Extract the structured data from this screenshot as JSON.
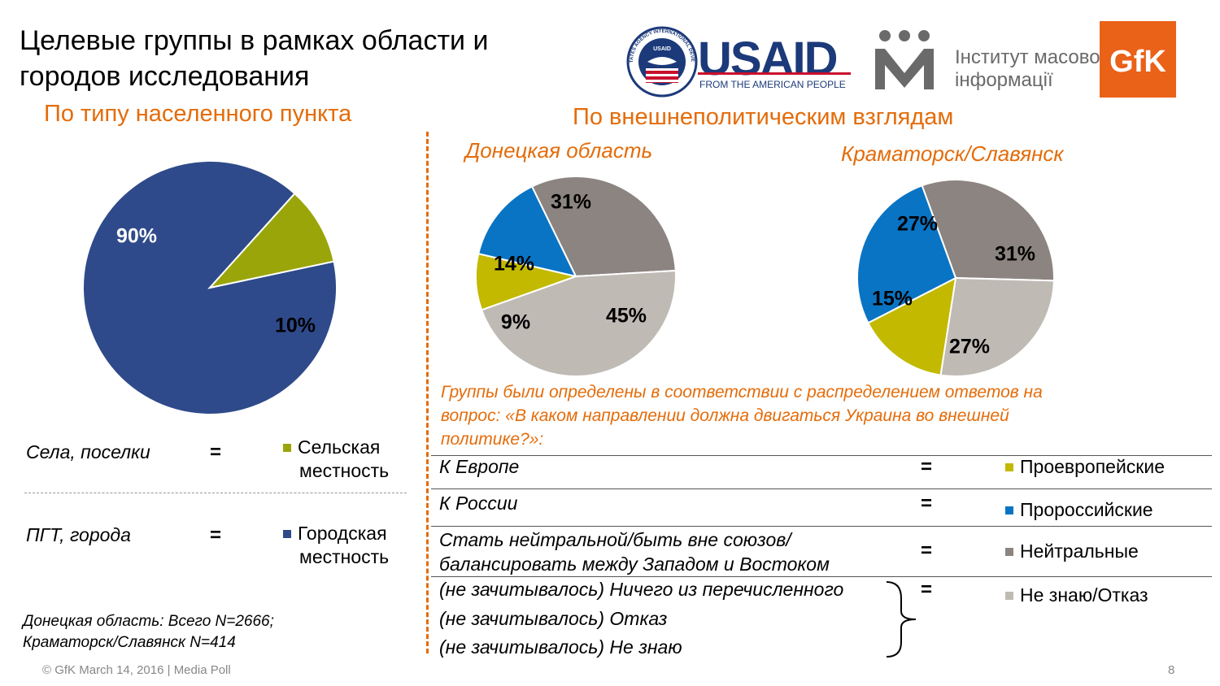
{
  "title_line1": "Целевые группы в рамках области и",
  "title_line2": "городов исследования",
  "left_subtitle": "По типу населенного пункта",
  "right_subtitle": "По внешнеполитическим взглядам",
  "logos": {
    "usaid_seal_text": "UNITED STATES AGENCY INTERNATIONAL DEVELOPMENT",
    "usaid_seal_inner": "USAID",
    "usaid_text": "USAID",
    "usaid_tagline": "FROM THE AMERICAN PEOPLE",
    "imi_line1": "Інститут масової",
    "imi_line2": "інформації",
    "gfk_text": "GfK"
  },
  "colors": {
    "orange": "#e46c0a",
    "urban": "#2e4a8a",
    "rural": "#9aa50a",
    "pro_eu": "#c2b900",
    "pro_ru": "#0a74c4",
    "neutral": "#8c8480",
    "dk": "#c0bab5"
  },
  "chart_data": [
    {
      "type": "pie",
      "title": "",
      "slices": [
        {
          "label": "Городская местность",
          "value": 90,
          "display": "90%",
          "color": "#2e4a8a"
        },
        {
          "label": "Сельская местность",
          "value": 10,
          "display": "10%",
          "color": "#9aa50a"
        }
      ]
    },
    {
      "type": "pie",
      "title": "Донецкая область",
      "slices": [
        {
          "label": "Нейтральные",
          "value": 31,
          "display": "31%",
          "color": "#8c8480"
        },
        {
          "label": "Не знаю/Отказ",
          "value": 45,
          "display": "45%",
          "color": "#c0bab5"
        },
        {
          "label": "Проевропейские",
          "value": 9,
          "display": "9%",
          "color": "#c2b900"
        },
        {
          "label": "Пророссийские",
          "value": 14,
          "display": "14%",
          "color": "#0a74c4"
        }
      ]
    },
    {
      "type": "pie",
      "title": "Краматорск/Славянск",
      "slices": [
        {
          "label": "Нейтральные",
          "value": 31,
          "display": "31%",
          "color": "#8c8480"
        },
        {
          "label": "Не знаю/Отказ",
          "value": 27,
          "display": "27%",
          "color": "#c0bab5"
        },
        {
          "label": "Проевропейские",
          "value": 15,
          "display": "15%",
          "color": "#c2b900"
        },
        {
          "label": "Пророссийские",
          "value": 27,
          "display": "27%",
          "color": "#0a74c4"
        }
      ]
    }
  ],
  "left_legend": [
    {
      "source": "Села, поселки",
      "eq": "=",
      "key_line1": "Сельская",
      "key_line2": "местность",
      "color": "#9aa50a"
    },
    {
      "source": "ПГТ, города",
      "eq": "=",
      "key_line1": "Городская",
      "key_line2": "местность",
      "color": "#2e4a8a"
    }
  ],
  "sample_note_line1": "Донецкая область: Всего N=2666;",
  "sample_note_line2": "Краматорск/Славянск N=414",
  "groups_note_line1": "Группы были определены в соответствии  с  распределением ответов  на",
  "groups_note_line2": "вопрос: «В каком направлении должна двигаться Украина во внешней",
  "groups_note_line3": "политике?»:",
  "right_legend": [
    {
      "answer": "К Европе",
      "eq": "=",
      "key": "Проевропейские",
      "color": "#c2b900"
    },
    {
      "answer": "К России",
      "eq": "=",
      "key": "Пророссийские",
      "color": "#0a74c4"
    },
    {
      "answer_line1": "Стать нейтральной/быть вне союзов/",
      "answer_line2": "балансировать между Западом и Востоком",
      "eq": "=",
      "key": "Нейтральные",
      "color": "#8c8480"
    }
  ],
  "dk_group": {
    "items": [
      "(не зачитывалось) Ничего из перечисленного",
      "(не зачитывалось) Отказ",
      "(не зачитывалось) Не знаю"
    ],
    "eq": "=",
    "key": "Не знаю/Отказ",
    "color": "#c0bab5"
  },
  "footer": "© GfK March 14, 2016 | Media Poll",
  "page_number": "8"
}
